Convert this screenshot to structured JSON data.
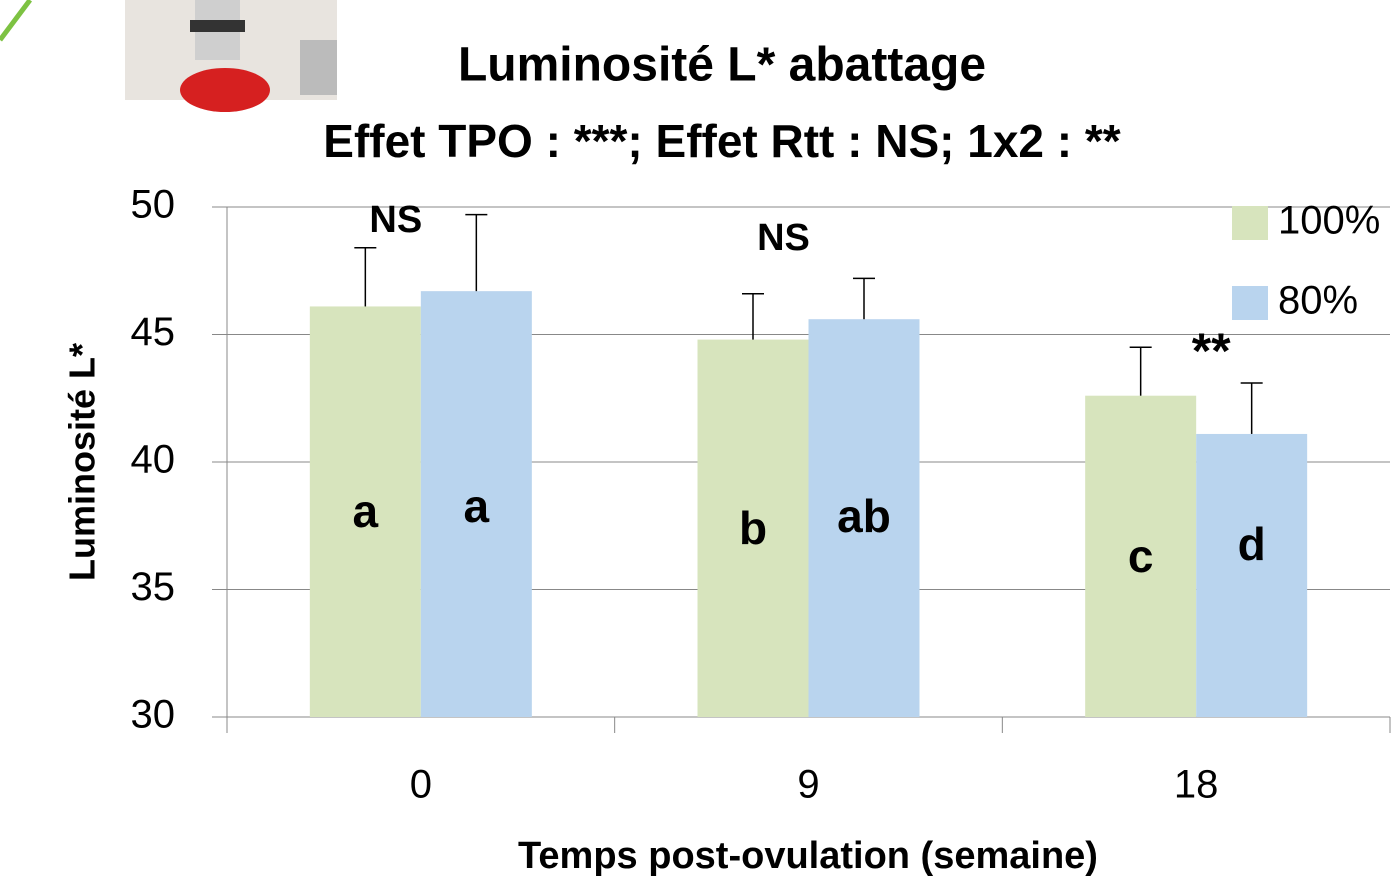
{
  "chart_data": {
    "type": "bar",
    "title": "Luminosité L* abattage",
    "subtitle": "Effet TPO : ***; Effet Rtt : NS;  1x2 : **",
    "x_label": "Temps post-ovulation (semaine)",
    "y_label": "Luminosité L*",
    "categories": [
      "0",
      "9",
      "18"
    ],
    "series": [
      {
        "name": "100%",
        "color": "#d7e4bd",
        "values": [
          46.1,
          44.8,
          42.6
        ],
        "errors": [
          2.3,
          1.8,
          1.9
        ],
        "letters": [
          "a",
          "b",
          "c"
        ]
      },
      {
        "name": "80%",
        "color": "#b9d4ee",
        "values": [
          46.7,
          45.6,
          41.1
        ],
        "errors": [
          3.0,
          1.6,
          2.0
        ],
        "letters": [
          "a",
          "ab",
          "d"
        ]
      }
    ],
    "annotations": [
      "NS",
      "NS",
      "**"
    ],
    "ylim": [
      30,
      50
    ],
    "yticks": [
      30,
      35,
      40,
      45,
      50
    ],
    "grid": true,
    "legend": "top-right"
  }
}
